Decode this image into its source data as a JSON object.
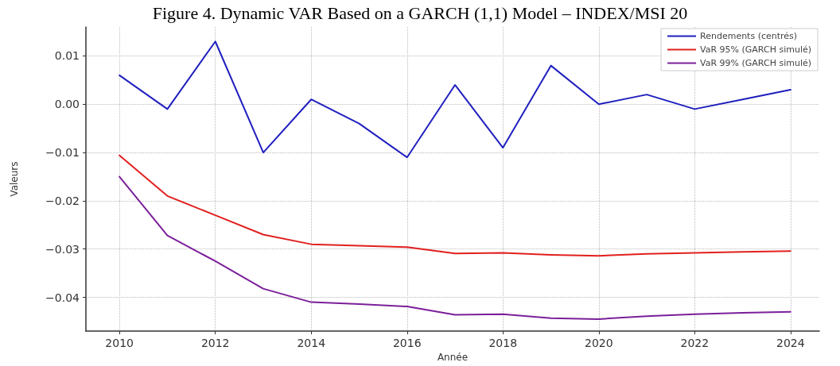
{
  "chart_data": {
    "type": "line",
    "title": "Figure 4. Dynamic VAR Based on a GARCH (1,1) Model – INDEX/MSI 20",
    "xlabel": "Année",
    "ylabel": "Valeurs",
    "x": [
      2010,
      2011,
      2012,
      2013,
      2014,
      2015,
      2016,
      2017,
      2018,
      2019,
      2020,
      2021,
      2022,
      2023,
      2024
    ],
    "series": [
      {
        "name": "Rendements (centrés)",
        "color": "#1f1fbf",
        "values": [
          0.006,
          -0.001,
          0.013,
          -0.01,
          0.001,
          -0.004,
          -0.011,
          0.004,
          -0.009,
          0.008,
          0.0,
          0.002,
          -0.001,
          0.001,
          0.003
        ]
      },
      {
        "name": "VaR 95% (GARCH simulé)",
        "color": "#e0201e",
        "values": [
          -0.0106,
          -0.019,
          -0.023,
          -0.027,
          -0.029,
          -0.0293,
          -0.0296,
          -0.0309,
          -0.0308,
          -0.0312,
          -0.0314,
          -0.031,
          -0.0308,
          -0.0306,
          -0.0304
        ]
      },
      {
        "name": "VaR 99% (GARCH simulé)",
        "color": "#7b1f9a",
        "values": [
          -0.015,
          -0.0272,
          -0.0325,
          -0.0382,
          -0.041,
          -0.0414,
          -0.0419,
          -0.0436,
          -0.0435,
          -0.0443,
          -0.0445,
          -0.0439,
          -0.0435,
          -0.0432,
          -0.043
        ]
      }
    ],
    "xlim": [
      2009.3,
      2024.6
    ],
    "xticks": [
      2010,
      2012,
      2014,
      2016,
      2018,
      2020,
      2022,
      2024
    ],
    "ylim": [
      -0.047,
      0.016
    ],
    "yticks": [
      {
        "value": -0.04,
        "label": "−0.04"
      },
      {
        "value": -0.03,
        "label": "−0.03"
      },
      {
        "value": -0.02,
        "label": "−0.02"
      },
      {
        "value": -0.01,
        "label": "−0.01"
      },
      {
        "value": 0,
        "label": "0.00"
      },
      {
        "value": 0.01,
        "label": "0.01"
      }
    ],
    "grid": true,
    "legend": "top right",
    "marker": "none",
    "line_style": "solid"
  }
}
